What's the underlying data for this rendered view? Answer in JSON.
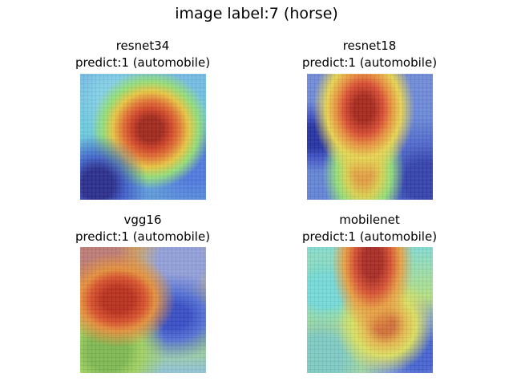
{
  "figure": {
    "title": "image label:7 (horse)"
  },
  "panels": [
    {
      "model": "resnet34",
      "prediction": "predict:1 (automobile)"
    },
    {
      "model": "resnet18",
      "prediction": "predict:1 (automobile)"
    },
    {
      "model": "vgg16",
      "prediction": "predict:1 (automobile)"
    },
    {
      "model": "mobilenet",
      "prediction": "predict:1 (automobile)"
    }
  ]
}
